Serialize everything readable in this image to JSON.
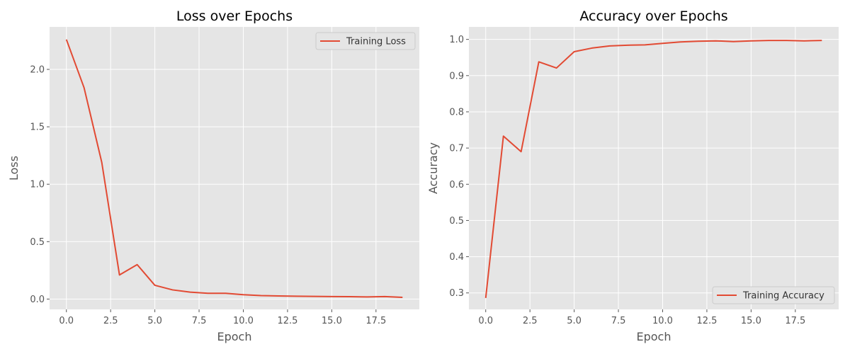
{
  "chart_data": [
    {
      "type": "line",
      "title": "Loss over Epochs",
      "xlabel": "Epoch",
      "ylabel": "Loss",
      "xlim": [
        -0.95,
        19.95
      ],
      "ylim": [
        -0.09,
        2.37
      ],
      "xticks": [
        0,
        2.5,
        5,
        7.5,
        10,
        12.5,
        15,
        17.5
      ],
      "xtick_labels": [
        "0.0",
        "2.5",
        "5.0",
        "7.5",
        "10.0",
        "12.5",
        "15.0",
        "17.5"
      ],
      "yticks": [
        0,
        0.5,
        1,
        1.5,
        2
      ],
      "ytick_labels": [
        "0.0",
        "0.5",
        "1.0",
        "1.5",
        "2.0"
      ],
      "grid": true,
      "legend_position": "upper right",
      "series": [
        {
          "name": "Training Loss",
          "color": "#E24A33",
          "x": [
            0,
            1,
            2,
            3,
            4,
            5,
            6,
            7,
            8,
            9,
            10,
            11,
            12,
            13,
            14,
            15,
            16,
            17,
            18,
            19
          ],
          "y": [
            2.26,
            1.84,
            1.19,
            0.21,
            0.3,
            0.12,
            0.08,
            0.06,
            0.05,
            0.05,
            0.038,
            0.03,
            0.027,
            0.025,
            0.023,
            0.022,
            0.021,
            0.019,
            0.022,
            0.015
          ]
        }
      ]
    },
    {
      "type": "line",
      "title": "Accuracy over Epochs",
      "xlabel": "Epoch",
      "ylabel": "Accuracy",
      "xlim": [
        -0.95,
        19.95
      ],
      "ylim": [
        0.2545,
        1.0345
      ],
      "xticks": [
        0,
        2.5,
        5,
        7.5,
        10,
        12.5,
        15,
        17.5
      ],
      "xtick_labels": [
        "0.0",
        "2.5",
        "5.0",
        "7.5",
        "10.0",
        "12.5",
        "15.0",
        "17.5"
      ],
      "yticks": [
        0.3,
        0.4,
        0.5,
        0.6,
        0.7,
        0.8,
        0.9,
        1.0
      ],
      "ytick_labels": [
        "0.3",
        "0.4",
        "0.5",
        "0.6",
        "0.7",
        "0.8",
        "0.9",
        "1.0"
      ],
      "grid": true,
      "legend_position": "lower right",
      "series": [
        {
          "name": "Training Accuracy",
          "color": "#E24A33",
          "x": [
            0,
            1,
            2,
            3,
            4,
            5,
            6,
            7,
            8,
            9,
            10,
            11,
            12,
            13,
            14,
            15,
            16,
            17,
            18,
            19
          ],
          "y": [
            0.286,
            0.733,
            0.69,
            0.938,
            0.921,
            0.966,
            0.976,
            0.982,
            0.984,
            0.985,
            0.989,
            0.993,
            0.995,
            0.996,
            0.994,
            0.996,
            0.997,
            0.997,
            0.996,
            0.997
          ]
        }
      ]
    }
  ],
  "style": {
    "panel_background": "#E5E5E5",
    "grid_color": "#FFFFFF",
    "legend_background": "#E5E5E5",
    "legend_border": "#CCCCCC"
  }
}
